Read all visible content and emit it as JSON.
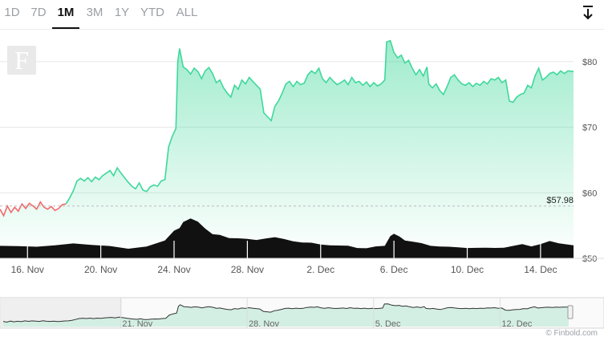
{
  "tabs": [
    {
      "label": "1D",
      "active": false
    },
    {
      "label": "7D",
      "active": false
    },
    {
      "label": "1M",
      "active": true
    },
    {
      "label": "3M",
      "active": false
    },
    {
      "label": "1Y",
      "active": false
    },
    {
      "label": "YTD",
      "active": false
    },
    {
      "label": "ALL",
      "active": false
    }
  ],
  "logo_letter": "F",
  "download_icon": "download-icon",
  "current_price_label": "$57.98",
  "credit": "© Finbold.com",
  "colors": {
    "up": "#3fd89b",
    "down": "#f06a6a",
    "volume": "#111111",
    "grid": "#e6e6e6",
    "navigator_fill": "#d3efe3"
  },
  "chart_data": {
    "type": "area",
    "y_unit": "$",
    "ylim": [
      50,
      85
    ],
    "y_ticks": [
      {
        "value": 50,
        "label": "$50"
      },
      {
        "value": 60,
        "label": "$60"
      },
      {
        "value": 70,
        "label": "$70"
      },
      {
        "value": 80,
        "label": "$80"
      }
    ],
    "xlim": [
      14.5,
      45.8
    ],
    "x_ticks": [
      {
        "value": 16,
        "label": "16. Nov"
      },
      {
        "value": 20,
        "label": "20. Nov"
      },
      {
        "value": 24,
        "label": "24. Nov"
      },
      {
        "value": 28,
        "label": "28. Nov"
      },
      {
        "value": 32,
        "label": "2. Dec"
      },
      {
        "value": 36,
        "label": "6. Dec"
      },
      {
        "value": 40,
        "label": "10. Dec"
      },
      {
        "value": 44,
        "label": "14. Dec"
      }
    ],
    "reference_line": {
      "value": 57.98,
      "label": "$57.98"
    },
    "price": [
      [
        14.5,
        57.5
      ],
      [
        14.7,
        56.5
      ],
      [
        14.9,
        58.0
      ],
      [
        15.1,
        57.0
      ],
      [
        15.3,
        57.8
      ],
      [
        15.5,
        57.2
      ],
      [
        15.7,
        58.3
      ],
      [
        15.9,
        57.6
      ],
      [
        16.1,
        58.4
      ],
      [
        16.3,
        58.0
      ],
      [
        16.5,
        57.5
      ],
      [
        16.7,
        58.6
      ],
      [
        16.9,
        57.8
      ],
      [
        17.1,
        57.5
      ],
      [
        17.3,
        57.9
      ],
      [
        17.5,
        57.3
      ],
      [
        17.7,
        57.6
      ],
      [
        17.9,
        58.2
      ],
      [
        18.1,
        58.3
      ],
      [
        18.3,
        59.2
      ],
      [
        18.5,
        60.3
      ],
      [
        18.7,
        61.8
      ],
      [
        18.9,
        62.2
      ],
      [
        19.1,
        61.8
      ],
      [
        19.3,
        62.3
      ],
      [
        19.5,
        61.7
      ],
      [
        19.7,
        62.4
      ],
      [
        19.9,
        62.0
      ],
      [
        20.1,
        62.6
      ],
      [
        20.3,
        63.0
      ],
      [
        20.5,
        63.4
      ],
      [
        20.7,
        62.6
      ],
      [
        20.9,
        63.8
      ],
      [
        21.1,
        63.0
      ],
      [
        21.3,
        62.3
      ],
      [
        21.5,
        61.6
      ],
      [
        21.7,
        61.0
      ],
      [
        21.9,
        60.6
      ],
      [
        22.1,
        61.5
      ],
      [
        22.3,
        60.4
      ],
      [
        22.5,
        60.2
      ],
      [
        22.7,
        60.9
      ],
      [
        22.9,
        61.2
      ],
      [
        23.1,
        61.0
      ],
      [
        23.3,
        61.8
      ],
      [
        23.5,
        62.0
      ],
      [
        23.7,
        67.0
      ],
      [
        23.9,
        68.6
      ],
      [
        24.1,
        69.8
      ],
      [
        24.2,
        80.0
      ],
      [
        24.3,
        82.0
      ],
      [
        24.5,
        79.2
      ],
      [
        24.7,
        78.8
      ],
      [
        24.9,
        78.1
      ],
      [
        25.1,
        79.0
      ],
      [
        25.3,
        78.5
      ],
      [
        25.5,
        77.4
      ],
      [
        25.7,
        78.6
      ],
      [
        25.9,
        79.1
      ],
      [
        26.1,
        78.2
      ],
      [
        26.3,
        76.8
      ],
      [
        26.5,
        77.2
      ],
      [
        26.7,
        76.0
      ],
      [
        26.9,
        75.2
      ],
      [
        27.1,
        74.6
      ],
      [
        27.3,
        76.4
      ],
      [
        27.5,
        75.8
      ],
      [
        27.7,
        77.2
      ],
      [
        27.9,
        76.6
      ],
      [
        28.1,
        77.6
      ],
      [
        28.3,
        77.0
      ],
      [
        28.5,
        76.4
      ],
      [
        28.7,
        75.8
      ],
      [
        28.9,
        72.2
      ],
      [
        29.1,
        71.6
      ],
      [
        29.3,
        71.0
      ],
      [
        29.5,
        73.2
      ],
      [
        29.7,
        74.0
      ],
      [
        29.9,
        75.2
      ],
      [
        30.1,
        76.6
      ],
      [
        30.3,
        77.0
      ],
      [
        30.5,
        76.2
      ],
      [
        30.7,
        77.0
      ],
      [
        30.9,
        76.5
      ],
      [
        31.1,
        76.7
      ],
      [
        31.3,
        78.0
      ],
      [
        31.5,
        78.6
      ],
      [
        31.7,
        78.2
      ],
      [
        31.9,
        79.0
      ],
      [
        32.1,
        77.4
      ],
      [
        32.3,
        76.8
      ],
      [
        32.5,
        77.6
      ],
      [
        32.7,
        77.0
      ],
      [
        32.9,
        76.5
      ],
      [
        33.1,
        76.8
      ],
      [
        33.3,
        77.2
      ],
      [
        33.5,
        76.5
      ],
      [
        33.7,
        77.6
      ],
      [
        33.9,
        76.8
      ],
      [
        34.1,
        77.0
      ],
      [
        34.3,
        76.4
      ],
      [
        34.5,
        76.9
      ],
      [
        34.7,
        76.2
      ],
      [
        34.9,
        76.8
      ],
      [
        35.1,
        76.3
      ],
      [
        35.3,
        76.6
      ],
      [
        35.5,
        77.2
      ],
      [
        35.6,
        83.0
      ],
      [
        35.8,
        83.2
      ],
      [
        36.0,
        81.4
      ],
      [
        36.2,
        80.6
      ],
      [
        36.4,
        81.0
      ],
      [
        36.6,
        79.8
      ],
      [
        36.8,
        80.2
      ],
      [
        37.0,
        79.0
      ],
      [
        37.2,
        78.0
      ],
      [
        37.4,
        78.8
      ],
      [
        37.6,
        77.8
      ],
      [
        37.8,
        79.2
      ],
      [
        37.9,
        76.6
      ],
      [
        38.1,
        76.0
      ],
      [
        38.3,
        76.6
      ],
      [
        38.5,
        75.6
      ],
      [
        38.7,
        75.0
      ],
      [
        38.9,
        76.2
      ],
      [
        39.1,
        77.6
      ],
      [
        39.3,
        78.0
      ],
      [
        39.5,
        77.2
      ],
      [
        39.7,
        76.6
      ],
      [
        39.9,
        76.4
      ],
      [
        40.1,
        76.8
      ],
      [
        40.3,
        76.2
      ],
      [
        40.5,
        76.7
      ],
      [
        40.7,
        76.4
      ],
      [
        40.9,
        77.0
      ],
      [
        41.1,
        76.6
      ],
      [
        41.3,
        77.4
      ],
      [
        41.5,
        77.2
      ],
      [
        41.7,
        77.6
      ],
      [
        41.9,
        76.8
      ],
      [
        42.1,
        77.2
      ],
      [
        42.3,
        74.0
      ],
      [
        42.5,
        73.8
      ],
      [
        42.7,
        74.6
      ],
      [
        42.9,
        75.0
      ],
      [
        43.1,
        75.2
      ],
      [
        43.3,
        76.4
      ],
      [
        43.5,
        76.0
      ],
      [
        43.7,
        77.8
      ],
      [
        43.9,
        79.0
      ],
      [
        44.1,
        77.2
      ],
      [
        44.3,
        77.6
      ],
      [
        44.5,
        78.2
      ],
      [
        44.7,
        78.4
      ],
      [
        44.9,
        78.0
      ],
      [
        45.1,
        78.6
      ],
      [
        45.3,
        78.2
      ],
      [
        45.5,
        78.6
      ],
      [
        45.8,
        78.5
      ]
    ],
    "volume_relative": [
      [
        14.5,
        0.3
      ],
      [
        15.5,
        0.28
      ],
      [
        16.5,
        0.25
      ],
      [
        17.5,
        0.27
      ],
      [
        18.5,
        0.35
      ],
      [
        19.5,
        0.3
      ],
      [
        20.5,
        0.26
      ],
      [
        21.5,
        0.23
      ],
      [
        22.5,
        0.27
      ],
      [
        23.5,
        0.4
      ],
      [
        24.0,
        0.62
      ],
      [
        24.3,
        0.72
      ],
      [
        24.5,
        0.85
      ],
      [
        24.9,
        0.92
      ],
      [
        25.3,
        0.88
      ],
      [
        25.7,
        0.7
      ],
      [
        26.1,
        0.55
      ],
      [
        26.5,
        0.52
      ],
      [
        27.0,
        0.48
      ],
      [
        27.5,
        0.46
      ],
      [
        28.0,
        0.43
      ],
      [
        28.5,
        0.44
      ],
      [
        29.0,
        0.46
      ],
      [
        29.5,
        0.48
      ],
      [
        30.0,
        0.42
      ],
      [
        30.5,
        0.4
      ],
      [
        31.0,
        0.36
      ],
      [
        31.5,
        0.34
      ],
      [
        32.0,
        0.33
      ],
      [
        32.5,
        0.3
      ],
      [
        33.0,
        0.28
      ],
      [
        33.5,
        0.26
      ],
      [
        34.0,
        0.24
      ],
      [
        34.5,
        0.22
      ],
      [
        35.0,
        0.25
      ],
      [
        35.5,
        0.3
      ],
      [
        35.8,
        0.52
      ],
      [
        36.0,
        0.56
      ],
      [
        36.3,
        0.48
      ],
      [
        36.6,
        0.42
      ],
      [
        37.0,
        0.38
      ],
      [
        37.5,
        0.33
      ],
      [
        38.0,
        0.3
      ],
      [
        38.5,
        0.27
      ],
      [
        39.0,
        0.25
      ],
      [
        39.5,
        0.22
      ],
      [
        40.0,
        0.24
      ],
      [
        40.5,
        0.23
      ],
      [
        41.0,
        0.22
      ],
      [
        41.5,
        0.25
      ],
      [
        42.0,
        0.24
      ],
      [
        42.5,
        0.27
      ],
      [
        43.0,
        0.3
      ],
      [
        43.5,
        0.28
      ],
      [
        44.0,
        0.32
      ],
      [
        44.5,
        0.38
      ],
      [
        45.0,
        0.36
      ],
      [
        45.8,
        0.3
      ]
    ],
    "navigator": {
      "x_ticks": [
        {
          "value": 21,
          "label": "21. Nov"
        },
        {
          "value": 28,
          "label": "28. Nov"
        },
        {
          "value": 35,
          "label": "5. Dec"
        },
        {
          "value": 42,
          "label": "12. Dec"
        }
      ]
    }
  }
}
